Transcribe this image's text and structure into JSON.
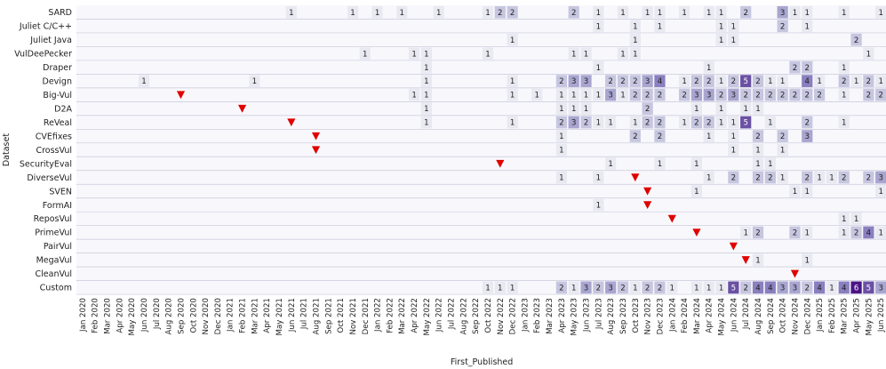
{
  "chart_data": {
    "type": "heatmap",
    "xlabel": "First_Published",
    "ylabel": "Dataset",
    "x": [
      "Jan 2020",
      "Feb 2020",
      "Mar 2020",
      "Apr 2020",
      "May 2020",
      "Jun 2020",
      "Jul 2020",
      "Aug 2020",
      "Sep 2020",
      "Oct 2020",
      "Nov 2020",
      "Dec 2020",
      "Jan 2021",
      "Feb 2021",
      "Mar 2021",
      "Apr 2021",
      "May 2021",
      "Jun 2021",
      "Jul 2021",
      "Aug 2021",
      "Sep 2021",
      "Oct 2021",
      "Nov 2021",
      "Dec 2021",
      "Jan 2022",
      "Feb 2022",
      "Mar 2022",
      "Apr 2022",
      "May 2022",
      "Jun 2022",
      "Jul 2022",
      "Aug 2022",
      "Sep 2022",
      "Oct 2022",
      "Nov 2022",
      "Dec 2022",
      "Jan 2023",
      "Feb 2023",
      "Mar 2023",
      "Apr 2023",
      "May 2023",
      "Jun 2023",
      "Jul 2023",
      "Aug 2023",
      "Sep 2023",
      "Oct 2023",
      "Nov 2023",
      "Dec 2023",
      "Jan 2024",
      "Feb 2024",
      "Mar 2024",
      "Apr 2024",
      "May 2024",
      "Jun 2024",
      "Jul 2024",
      "Aug 2024",
      "Sep 2024",
      "Oct 2024",
      "Nov 2024",
      "Dec 2024",
      "Jan 2025",
      "Feb 2025",
      "Mar 2025",
      "Apr 2025",
      "May 2025",
      "Jun 2025"
    ],
    "y": [
      "SARD",
      "Juliet C/C++",
      "Juliet Java",
      "VulDeePecker",
      "Draper",
      "Devign",
      "Big-Vul",
      "D2A",
      "ReVeal",
      "CVEfixes",
      "CrossVul",
      "SecurityEval",
      "DiverseVul",
      "SVEN",
      "FormAI",
      "ReposVul",
      "PrimeVul",
      "PairVul",
      "MegaVul",
      "CleanVul",
      "Custom"
    ],
    "cells": {
      "SARD": {
        "Jun 2021": 1,
        "Nov 2021": 1,
        "Jan 2022": 1,
        "Mar 2022": 1,
        "Jun 2022": 1,
        "Oct 2022": 1,
        "Nov 2022": 2,
        "Dec 2022": 2,
        "May 2023": 2,
        "Jul 2023": 1,
        "Sep 2023": 1,
        "Nov 2023": 1,
        "Dec 2023": 1,
        "Feb 2024": 1,
        "Apr 2024": 1,
        "May 2024": 1,
        "Jul 2024": 2,
        "Oct 2024": 3,
        "Nov 2024": 1,
        "Dec 2024": 1,
        "Mar 2025": 1,
        "Jun 2025": 1
      },
      "Juliet C/C++": {
        "Jul 2023": 1,
        "Oct 2023": 1,
        "Dec 2023": 1,
        "May 2024": 1,
        "Jun 2024": 1,
        "Oct 2024": 2,
        "Dec 2024": 1
      },
      "Juliet Java": {
        "Dec 2022": 1,
        "Oct 2023": 1,
        "May 2024": 1,
        "Jun 2024": 1,
        "Apr 2025": 2
      },
      "VulDeePecker": {
        "Dec 2021": 1,
        "Apr 2022": 1,
        "May 2022": 1,
        "Oct 2022": 1,
        "May 2023": 1,
        "Jun 2023": 1,
        "Sep 2023": 1,
        "Oct 2023": 1,
        "May 2025": 1
      },
      "Draper": {
        "May 2022": 1,
        "Jul 2023": 1,
        "Apr 2024": 1,
        "Nov 2024": 2,
        "Dec 2024": 2,
        "Mar 2025": 1
      },
      "Devign": {
        "Jun 2020": 1,
        "Mar 2021": 1,
        "May 2022": 1,
        "Dec 2022": 1,
        "Apr 2023": 2,
        "May 2023": 3,
        "Jun 2023": 3,
        "Aug 2023": 2,
        "Sep 2023": 2,
        "Oct 2023": 2,
        "Nov 2023": 3,
        "Dec 2023": 4,
        "Feb 2024": 1,
        "Mar 2024": 2,
        "Apr 2024": 2,
        "May 2024": 1,
        "Jun 2024": 2,
        "Jul 2024": 5,
        "Aug 2024": 2,
        "Sep 2024": 1,
        "Oct 2024": 1,
        "Dec 2024": 4,
        "Jan 2025": 1,
        "Mar 2025": 2,
        "Apr 2025": 1,
        "May 2025": 2,
        "Jun 2025": 1
      },
      "Big-Vul": {
        "Apr 2022": 1,
        "May 2022": 1,
        "Dec 2022": 1,
        "Feb 2023": 1,
        "Apr 2023": 1,
        "May 2023": 1,
        "Jun 2023": 1,
        "Jul 2023": 1,
        "Aug 2023": 3,
        "Sep 2023": 1,
        "Oct 2023": 2,
        "Nov 2023": 2,
        "Dec 2023": 2,
        "Feb 2024": 2,
        "Mar 2024": 3,
        "Apr 2024": 3,
        "May 2024": 2,
        "Jun 2024": 3,
        "Jul 2024": 2,
        "Aug 2024": 2,
        "Sep 2024": 2,
        "Oct 2024": 2,
        "Nov 2024": 2,
        "Dec 2024": 2,
        "Jan 2025": 2,
        "Mar 2025": 1,
        "May 2025": 2,
        "Jun 2025": 2
      },
      "D2A": {
        "May 2022": 1,
        "Apr 2023": 1,
        "May 2023": 1,
        "Jun 2023": 1,
        "Nov 2023": 2,
        "Mar 2024": 1,
        "May 2024": 1,
        "Jul 2024": 1,
        "Aug 2024": 1
      },
      "ReVeal": {
        "May 2022": 1,
        "Dec 2022": 1,
        "Apr 2023": 2,
        "May 2023": 3,
        "Jun 2023": 2,
        "Jul 2023": 1,
        "Aug 2023": 1,
        "Oct 2023": 1,
        "Nov 2023": 2,
        "Dec 2023": 2,
        "Feb 2024": 1,
        "Mar 2024": 2,
        "Apr 2024": 2,
        "May 2024": 1,
        "Jun 2024": 1,
        "Jul 2024": 5,
        "Sep 2024": 1,
        "Dec 2024": 2,
        "Mar 2025": 1
      },
      "CVEfixes": {
        "Apr 2023": 1,
        "Oct 2023": 2,
        "Dec 2023": 2,
        "Apr 2024": 1,
        "Jun 2024": 1,
        "Aug 2024": 2,
        "Oct 2024": 2,
        "Dec 2024": 3
      },
      "CrossVul": {
        "Apr 2023": 1,
        "Jun 2024": 1,
        "Aug 2024": 1,
        "Oct 2024": 1
      },
      "SecurityEval": {
        "Aug 2023": 1,
        "Dec 2023": 1,
        "Mar 2024": 1,
        "Aug 2024": 1,
        "Sep 2024": 1
      },
      "DiverseVul": {
        "Apr 2023": 1,
        "Jul 2023": 1,
        "Apr 2024": 1,
        "Jun 2024": 2,
        "Aug 2024": 2,
        "Sep 2024": 2,
        "Oct 2024": 1,
        "Dec 2024": 2,
        "Jan 2025": 1,
        "Feb 2025": 1,
        "Mar 2025": 2,
        "May 2025": 2,
        "Jun 2025": 3
      },
      "SVEN": {
        "Mar 2024": 1,
        "Nov 2024": 1,
        "Dec 2024": 1,
        "Jun 2025": 1
      },
      "FormAI": {
        "Jul 2023": 1
      },
      "ReposVul": {
        "Mar 2025": 1,
        "Apr 2025": 1
      },
      "PrimeVul": {
        "Jul 2024": 1,
        "Aug 2024": 2,
        "Nov 2024": 2,
        "Dec 2024": 1,
        "Mar 2025": 1,
        "Apr 2025": 2,
        "May 2025": 4,
        "Jun 2025": 1
      },
      "PairVul": {},
      "MegaVul": {
        "Aug 2024": 1,
        "Dec 2024": 1
      },
      "CleanVul": {},
      "Custom": {
        "Oct 2022": 1,
        "Nov 2022": 1,
        "Dec 2022": 1,
        "Apr 2023": 2,
        "May 2023": 1,
        "Jun 2023": 3,
        "Jul 2023": 2,
        "Aug 2023": 3,
        "Sep 2023": 2,
        "Oct 2023": 1,
        "Nov 2023": 2,
        "Dec 2023": 2,
        "Jan 2024": 1,
        "Mar 2024": 1,
        "Apr 2024": 1,
        "May 2024": 1,
        "Jun 2024": 5,
        "Jul 2024": 2,
        "Aug 2024": 4,
        "Sep 2024": 4,
        "Oct 2024": 3,
        "Nov 2024": 3,
        "Dec 2024": 2,
        "Jan 2025": 4,
        "Feb 2025": 1,
        "Mar 2025": 4,
        "Apr 2025": 6,
        "May 2025": 5,
        "Jun 2025": 3
      }
    },
    "markers": [
      {
        "dataset": "Big-Vul",
        "x": "Sep 2020"
      },
      {
        "dataset": "D2A",
        "x": "Feb 2021"
      },
      {
        "dataset": "ReVeal",
        "x": "Jun 2021"
      },
      {
        "dataset": "CVEfixes",
        "x": "Aug 2021"
      },
      {
        "dataset": "CrossVul",
        "x": "Aug 2021"
      },
      {
        "dataset": "SecurityEval",
        "x": "Nov 2022"
      },
      {
        "dataset": "DiverseVul",
        "x": "Oct 2023"
      },
      {
        "dataset": "SVEN",
        "x": "Nov 2023"
      },
      {
        "dataset": "FormAI",
        "x": "Nov 2023"
      },
      {
        "dataset": "ReposVul",
        "x": "Jan 2024"
      },
      {
        "dataset": "PrimeVul",
        "x": "Mar 2024"
      },
      {
        "dataset": "PairVul",
        "x": "Jun 2024"
      },
      {
        "dataset": "MegaVul",
        "x": "Jul 2024"
      },
      {
        "dataset": "CleanVul",
        "x": "Nov 2024"
      }
    ],
    "colors": {
      "background": "#f8f8fc",
      "gridline": "#c8c8dc",
      "marker": "#e00000",
      "scale": [
        "#e9e9f2",
        "#c6c6e0",
        "#a8a6d0",
        "#8a7fbf",
        "#6a51a3",
        "#4a1486"
      ]
    },
    "grid": true
  }
}
